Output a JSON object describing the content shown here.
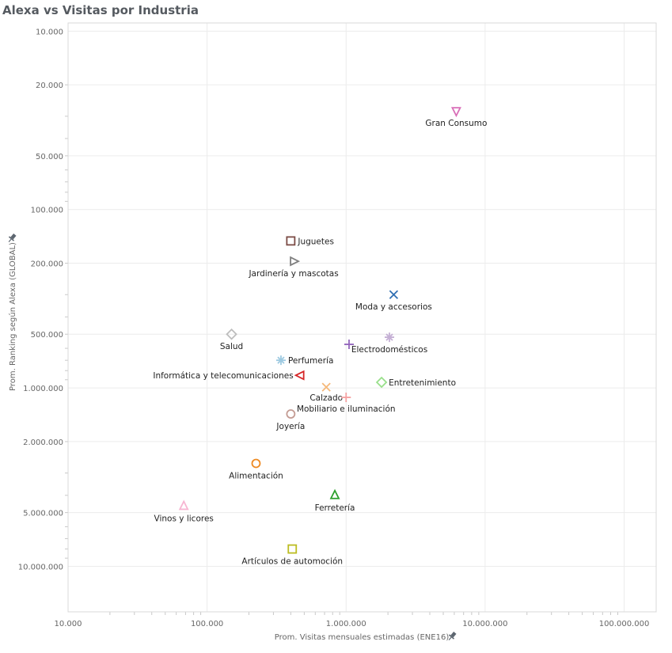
{
  "chart_data": {
    "type": "scatter",
    "title": "Alexa vs Visitas por Industria",
    "xlabel": "Prom. Visitas mensuales estimadas (ENE16)",
    "ylabel": "Prom. Ranking según Alexa (GLOBAL)",
    "x_scale": "log",
    "y_scale": "log",
    "y_reversed": true,
    "xlim": [
      10000,
      170000000
    ],
    "ylim": [
      9000,
      18000000
    ],
    "grid": true,
    "x_ticks": [
      {
        "value": 10000,
        "label": "10.000"
      },
      {
        "value": 100000,
        "label": "100.000"
      },
      {
        "value": 1000000,
        "label": "1.000.000"
      },
      {
        "value": 10000000,
        "label": "10.000.000"
      },
      {
        "value": 100000000,
        "label": "100.000.000"
      }
    ],
    "y_ticks": [
      {
        "value": 10000,
        "label": "10.000"
      },
      {
        "value": 20000,
        "label": "20.000"
      },
      {
        "value": 50000,
        "label": "50.000"
      },
      {
        "value": 100000,
        "label": "100.000"
      },
      {
        "value": 200000,
        "label": "200.000"
      },
      {
        "value": 500000,
        "label": "500.000"
      },
      {
        "value": 1000000,
        "label": "1.000.000"
      },
      {
        "value": 2000000,
        "label": "2.000.000"
      },
      {
        "value": 5000000,
        "label": "5.000.000"
      },
      {
        "value": 10000000,
        "label": "10.000.000"
      }
    ],
    "points": [
      {
        "name": "Gran Consumo",
        "x": 6200000,
        "y": 28000,
        "marker": "triangle-down",
        "color": "#d96fb8",
        "label_pos": "below"
      },
      {
        "name": "Juguetes",
        "x": 400000,
        "y": 150000,
        "marker": "square",
        "color": "#7b4b45",
        "label_pos": "right"
      },
      {
        "name": "Jardinería y mascotas",
        "x": 420000,
        "y": 195000,
        "marker": "triangle-right",
        "color": "#7f7f7f",
        "label_pos": "below"
      },
      {
        "name": "Moda y accesorios",
        "x": 2200000,
        "y": 300000,
        "marker": "x",
        "color": "#2f6fb3",
        "label_pos": "below"
      },
      {
        "name": "Salud",
        "x": 150000,
        "y": 500000,
        "marker": "diamond",
        "color": "#bdbdbd",
        "label_pos": "below"
      },
      {
        "name": "Electrodomésticos",
        "x": 2050000,
        "y": 520000,
        "marker": "asterisk",
        "color": "#c5b0d5",
        "label_pos": "below"
      },
      {
        "name": "",
        "x": 1050000,
        "y": 570000,
        "marker": "plus",
        "color": "#9467bd",
        "label_pos": "none"
      },
      {
        "name": "Perfumería",
        "x": 340000,
        "y": 700000,
        "marker": "asterisk",
        "color": "#9ecae1",
        "label_pos": "right"
      },
      {
        "name": "Informática y telecomunicaciones",
        "x": 470000,
        "y": 850000,
        "marker": "triangle-left",
        "color": "#d62728",
        "label_pos": "left"
      },
      {
        "name": "Entretenimiento",
        "x": 1800000,
        "y": 930000,
        "marker": "diamond",
        "color": "#98df8a",
        "label_pos": "right"
      },
      {
        "name": "Calzado",
        "x": 720000,
        "y": 990000,
        "marker": "x",
        "color": "#f5b87a",
        "label_pos": "below"
      },
      {
        "name": "Mobiliario e iluminación",
        "x": 1000000,
        "y": 1130000,
        "marker": "plus",
        "color": "#f4a2a2",
        "label_pos": "below"
      },
      {
        "name": "Joyería",
        "x": 400000,
        "y": 1400000,
        "marker": "circle",
        "color": "#c49c94",
        "label_pos": "below"
      },
      {
        "name": "Alimentación",
        "x": 225000,
        "y": 2650000,
        "marker": "circle",
        "color": "#ee8a23",
        "label_pos": "below"
      },
      {
        "name": "Ferretería",
        "x": 830000,
        "y": 4000000,
        "marker": "triangle-up",
        "color": "#2ca02c",
        "label_pos": "below"
      },
      {
        "name": "Vinos y licores",
        "x": 68000,
        "y": 4600000,
        "marker": "triangle-up",
        "color": "#f7b6d2",
        "label_pos": "below"
      },
      {
        "name": "Artículos de automoción",
        "x": 410000,
        "y": 8000000,
        "marker": "square",
        "color": "#bcbd22",
        "label_pos": "below"
      }
    ]
  }
}
